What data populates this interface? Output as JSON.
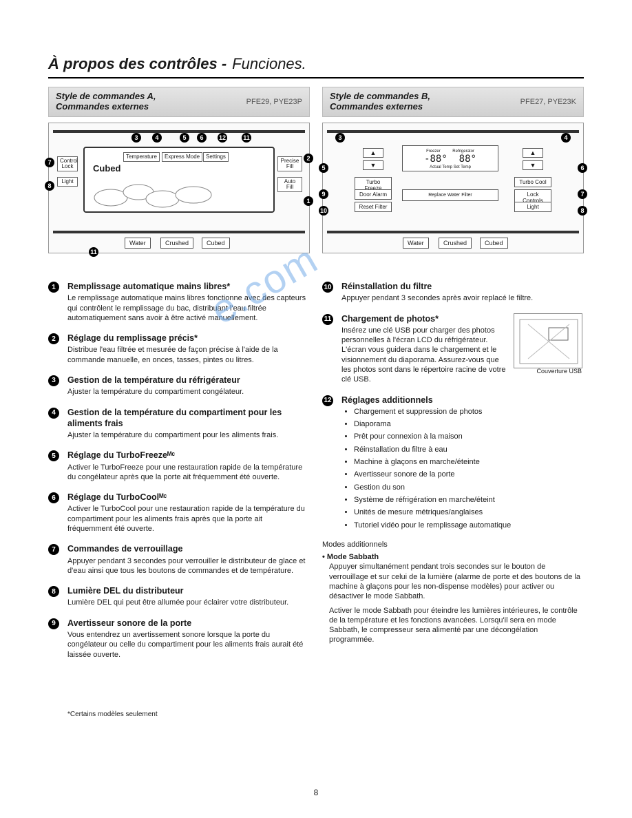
{
  "page": {
    "title_bold": "À propos des contrôles -",
    "title_italic": "Funciones.",
    "pagenum": "8",
    "footnote": "*Certains modèles seulement",
    "watermark": "e.com"
  },
  "panelA": {
    "header_line1": "Style de commandes A,",
    "header_line2": "Commandes externes",
    "models": "PFE29, PYE23P",
    "control_lock": "Control Lock",
    "light": "Light",
    "temperature": "Temperature",
    "express_mode": "Express Mode",
    "settings": "Settings",
    "precise_fill": "Precise Fill",
    "auto_fill": "Auto Fill",
    "cubed_display": "Cubed",
    "water": "Water",
    "crushed": "Crushed",
    "cubed": "Cubed"
  },
  "panelB": {
    "header_line1": "Style de commandes B,",
    "header_line2": "Commandes externes",
    "models": "PFE27, PYE23K",
    "freezer": "Freezer",
    "refrigerator": "Refrigerator",
    "actual_temp": "Actual Temp Set Temp",
    "turbo_freeze": "Turbo Freeze",
    "door_alarm": "Door Alarm",
    "reset_filter": "Reset Filter",
    "turbo_cool": "Turbo Cool",
    "lock_controls": "Lock Controls",
    "light": "Light",
    "replace_filter": "Replace Water Filter",
    "water": "Water",
    "crushed": "Crushed",
    "cubed": "Cubed",
    "temp_display": "-88°"
  },
  "items_left": [
    {
      "n": "1",
      "title": "Remplissage automatique mains libres*",
      "body": "Le remplissage automatique mains libres fonctionne avec des capteurs qui contrôlent le remplissage du bac, distribuant l'eau filtrée automatiquement sans avoir à être activé manuellement."
    },
    {
      "n": "2",
      "title": "Réglage du remplissage précis*",
      "body": "Distribue l'eau filtrée et mesurée de façon précise à l'aide de la commande manuelle, en onces, tasses, pintes ou litres."
    },
    {
      "n": "3",
      "title": "Gestion de la température du réfrigérateur",
      "body": "Ajuster la température du compartiment congélateur."
    },
    {
      "n": "4",
      "title": "Gestion de la température du compartiment pour les aliments frais",
      "body": "Ajuster la température du compartiment pour les aliments frais."
    },
    {
      "n": "5",
      "title": "Réglage du TurboFreezeᴹᶜ",
      "body": "Activer le TurboFreeze pour une restauration rapide de la température du congélateur après que la porte ait fréquemment été ouverte."
    },
    {
      "n": "6",
      "title": "Réglage du TurboCoolᴹᶜ",
      "body": "Activer le TurboCool pour une restauration rapide de la température du compartiment pour les aliments frais après que la porte ait fréquemment été ouverte."
    },
    {
      "n": "7",
      "title": "Commandes de verrouillage",
      "body": "Appuyer pendant 3 secondes pour verrouiller le distributeur de glace et d'eau ainsi que tous les boutons de commandes et de température."
    },
    {
      "n": "8",
      "title": "Lumière DEL du distributeur",
      "body": "Lumière DEL qui peut être allumée pour éclairer votre distributeur."
    },
    {
      "n": "9",
      "title": "Avertisseur sonore de la porte",
      "body": "Vous entendrez un avertissement sonore lorsque la porte du congélateur ou celle du compartiment pour les aliments frais aurait été laissée ouverte."
    }
  ],
  "items_right": [
    {
      "n": "10",
      "title": "Réinstallation du filtre",
      "body": "Appuyer pendant 3 secondes après avoir replacé le filtre."
    },
    {
      "n": "11",
      "title": "Chargement de photos*",
      "body": "Insérez une clé USB pour charger des photos personnelles à l'écran LCD du réfrigérateur. L'écran vous guidera dans le chargement et le visionnement du diaporama. Assurez-vous que les photos sont dans le répertoire racine de votre clé USB."
    }
  ],
  "usb_caption": "Couverture USB",
  "item12": {
    "n": "12",
    "title": "Réglages additionnels",
    "bullets": [
      "Chargement et suppression de photos",
      "Diaporama",
      "Prêt pour connexion à la maison",
      "Réinstallation du filtre à eau",
      "Machine à glaçons en marche/éteinte",
      "Avertisseur sonore de la porte",
      "Gestion du son",
      "Système de réfrigération en marche/éteint",
      "Unités de mesure métriques/anglaises",
      "Tutoriel vidéo pour le remplissage automatique"
    ]
  },
  "modes": {
    "heading": "Modes additionnels",
    "sabbath_title": "• Mode Sabbath",
    "sabbath_p1": "Appuyer simultanément pendant trois secondes sur le bouton de verrouillage et sur celui de la lumière (alarme de porte et des boutons de la machine à glaçons pour les non-dispense modèles) pour activer ou désactiver le mode Sabbath.",
    "sabbath_p2": "Activer le mode Sabbath pour éteindre les lumières intérieures, le contrôle de la température et les fonctions avancées. Lorsqu'il sera en mode Sabbath, le compresseur sera alimenté par une décongélation programmée."
  }
}
